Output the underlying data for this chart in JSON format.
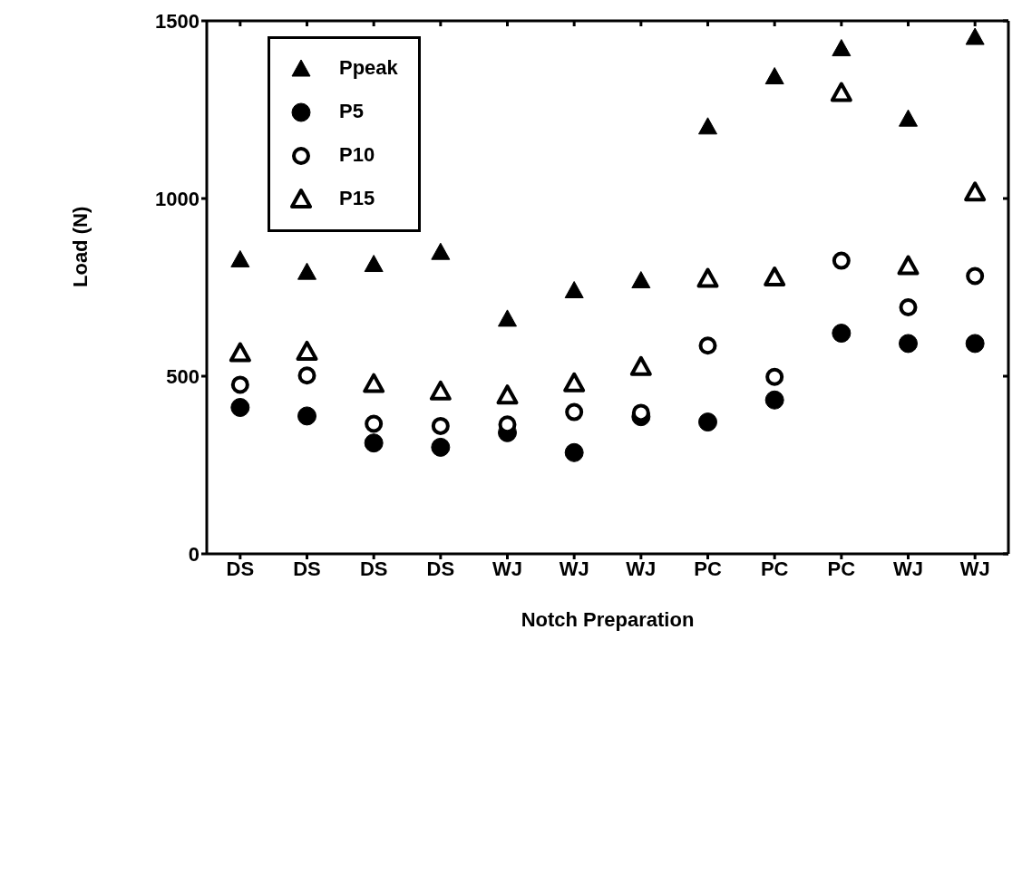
{
  "chart_data": {
    "type": "scatter",
    "xlabel": "Notch Preparation",
    "ylabel": "Load (N)",
    "categories": [
      "DS",
      "DS",
      "DS",
      "DS",
      "WJ",
      "WJ",
      "WJ",
      "PC",
      "PC",
      "PC",
      "WJ",
      "WJ"
    ],
    "ylim": [
      0,
      1500
    ],
    "yticks": [
      0,
      500,
      1000,
      1500
    ],
    "legend": "top left",
    "series": [
      {
        "name": "Ppeak",
        "color": "#000000",
        "marker": "triangle",
        "values": [
          828,
          793,
          815,
          849,
          661,
          741,
          769,
          1202,
          1343,
          1422,
          1224,
          1454
        ]
      },
      {
        "name": "P5",
        "color": "#000000",
        "marker": "circle",
        "values": [
          412,
          388,
          312,
          300,
          341,
          285,
          386,
          371,
          433,
          621,
          592,
          592
        ]
      },
      {
        "name": "P10",
        "color": "#000000",
        "marker": "circle",
        "values": [
          476,
          502,
          366,
          360,
          364,
          399,
          397,
          586,
          498,
          825,
          694,
          782
        ]
      },
      {
        "name": "P15",
        "color": "#000000",
        "marker": "triangle",
        "values": [
          565,
          569,
          478,
          457,
          446,
          480,
          526,
          774,
          778,
          1297,
          810,
          1017
        ]
      }
    ]
  }
}
